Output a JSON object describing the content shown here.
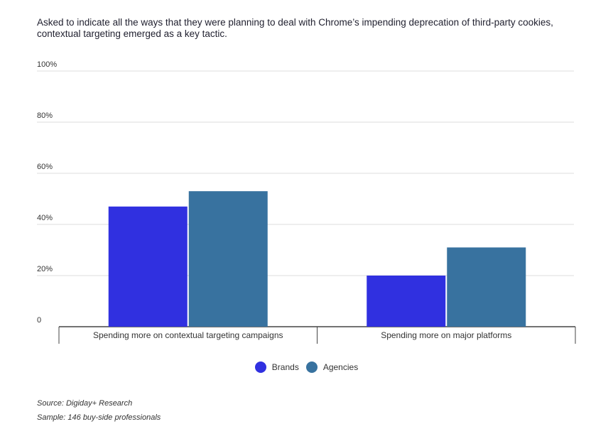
{
  "title": "Asked to indicate all the ways that they were planning to deal with Chrome’s impending deprecation of third-party cookies, contextual targeting emerged as a key tactic.",
  "chart_data": {
    "type": "bar",
    "categories": [
      "Spending more on contextual targeting campaigns",
      "Spending more on major platforms"
    ],
    "series": [
      {
        "name": "Brands",
        "values": [
          47,
          20
        ],
        "color": "#3030e0"
      },
      {
        "name": "Agencies",
        "values": [
          53,
          31
        ],
        "color": "#38729f"
      }
    ],
    "ylim": [
      0,
      100
    ],
    "yticks": [
      0,
      20,
      40,
      60,
      80,
      100
    ],
    "ytick_labels": [
      "0",
      "20%",
      "40%",
      "60%",
      "80%",
      "100%"
    ],
    "grid": true,
    "legend": "bottom"
  },
  "footer": {
    "source": "Source: Digiday+ Research",
    "sample": "Sample: 146 buy-side professionals"
  }
}
